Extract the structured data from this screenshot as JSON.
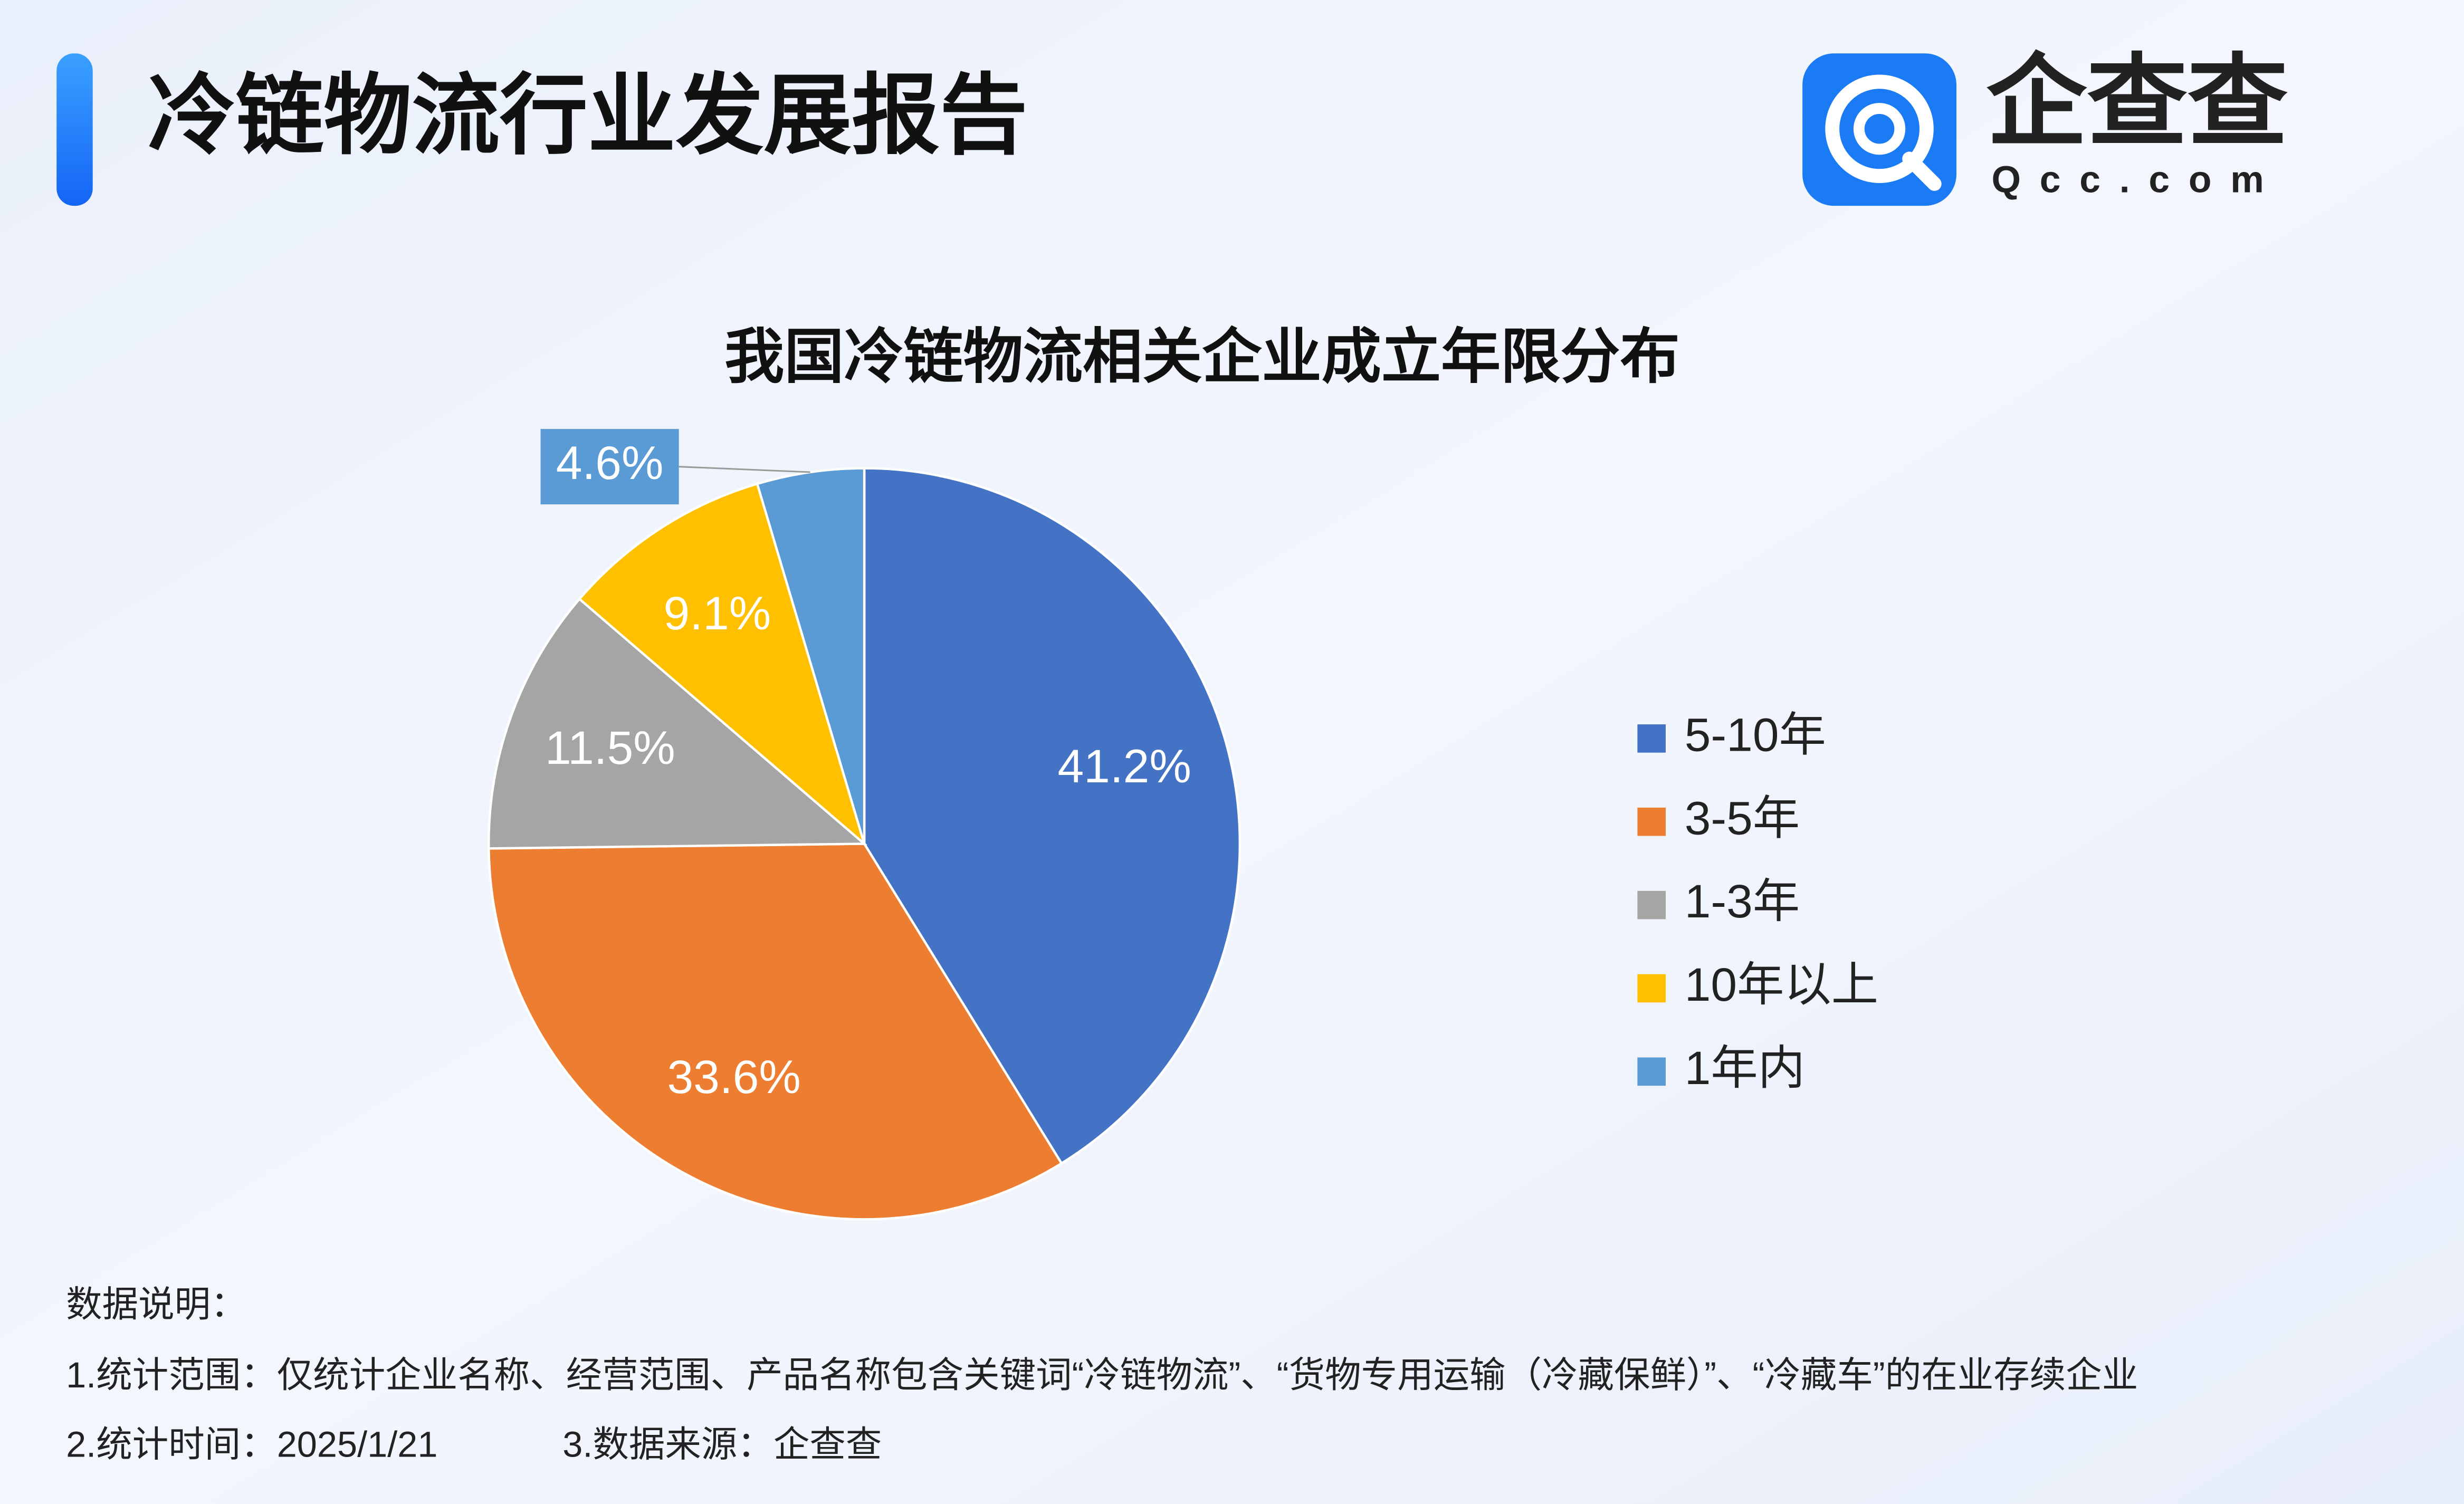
{
  "header": {
    "title": "冷链物流行业发展报告",
    "logo_name": "企查查",
    "logo_domain": "Qcc.com"
  },
  "chart_data": {
    "type": "pie",
    "title": "我国冷链物流相关企业成立年限分布",
    "categories": [
      "5-10年",
      "3-5年",
      "1-3年",
      "10年以上",
      "1年内"
    ],
    "values": [
      41.2,
      33.6,
      11.5,
      9.1,
      4.6
    ],
    "value_labels": [
      "41.2%",
      "33.6%",
      "11.5%",
      "9.1%",
      "4.6%"
    ],
    "colors": [
      "#4472c4",
      "#ed7d31",
      "#a5a5a5",
      "#ffc000",
      "#5b9bd5"
    ],
    "legend": "right"
  },
  "notes": {
    "heading": "数据说明：",
    "scope": "1.统计范围：仅统计企业名称、经营范围、产品名称包含关键词“冷链物流”、“货物专用运输（冷藏保鲜）”、“冷藏车”的在业存续企业",
    "time": "2.统计时间：2025/1/21",
    "source": "3.数据来源：企查查"
  }
}
